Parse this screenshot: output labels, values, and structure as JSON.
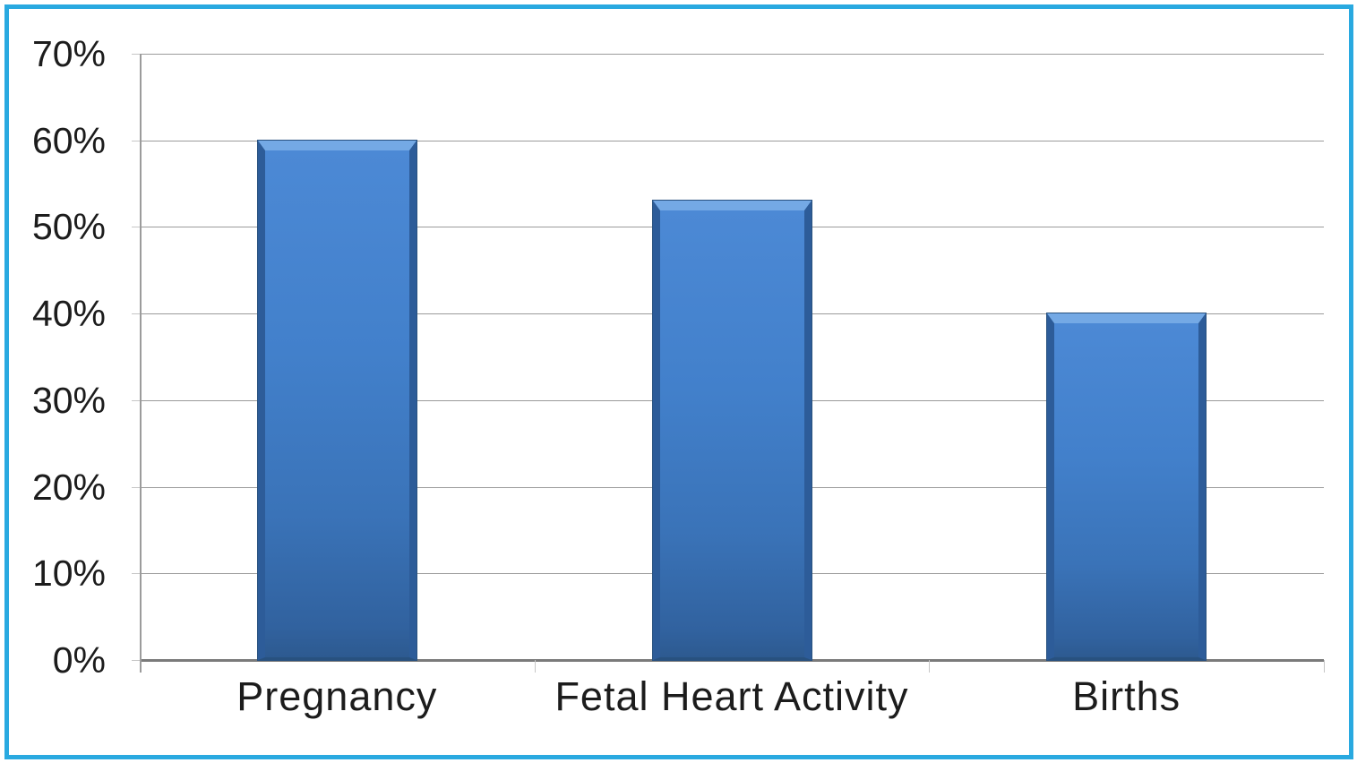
{
  "chart_data": {
    "type": "bar",
    "title": "",
    "xlabel": "",
    "ylabel": "",
    "categories": [
      "Pregnancy",
      "Fetal Heart Activity",
      "Births"
    ],
    "values": [
      60,
      53,
      40
    ],
    "value_unit": "%",
    "ylim": [
      0,
      70
    ],
    "ytick_step": 10,
    "ytick_labels": [
      "0%",
      "10%",
      "20%",
      "30%",
      "40%",
      "50%",
      "60%",
      "70%"
    ],
    "grid": true,
    "legend": false,
    "bar_color": "#4080CA",
    "bar_edge_color": "#2D5C99",
    "bar_highlight_color": "#74A9E5",
    "frame_border_color": "#29A9E0",
    "gridline_color": "#9B9B9B",
    "axis_color": "#7A7A7A",
    "text_color": "#1C1C1C"
  }
}
